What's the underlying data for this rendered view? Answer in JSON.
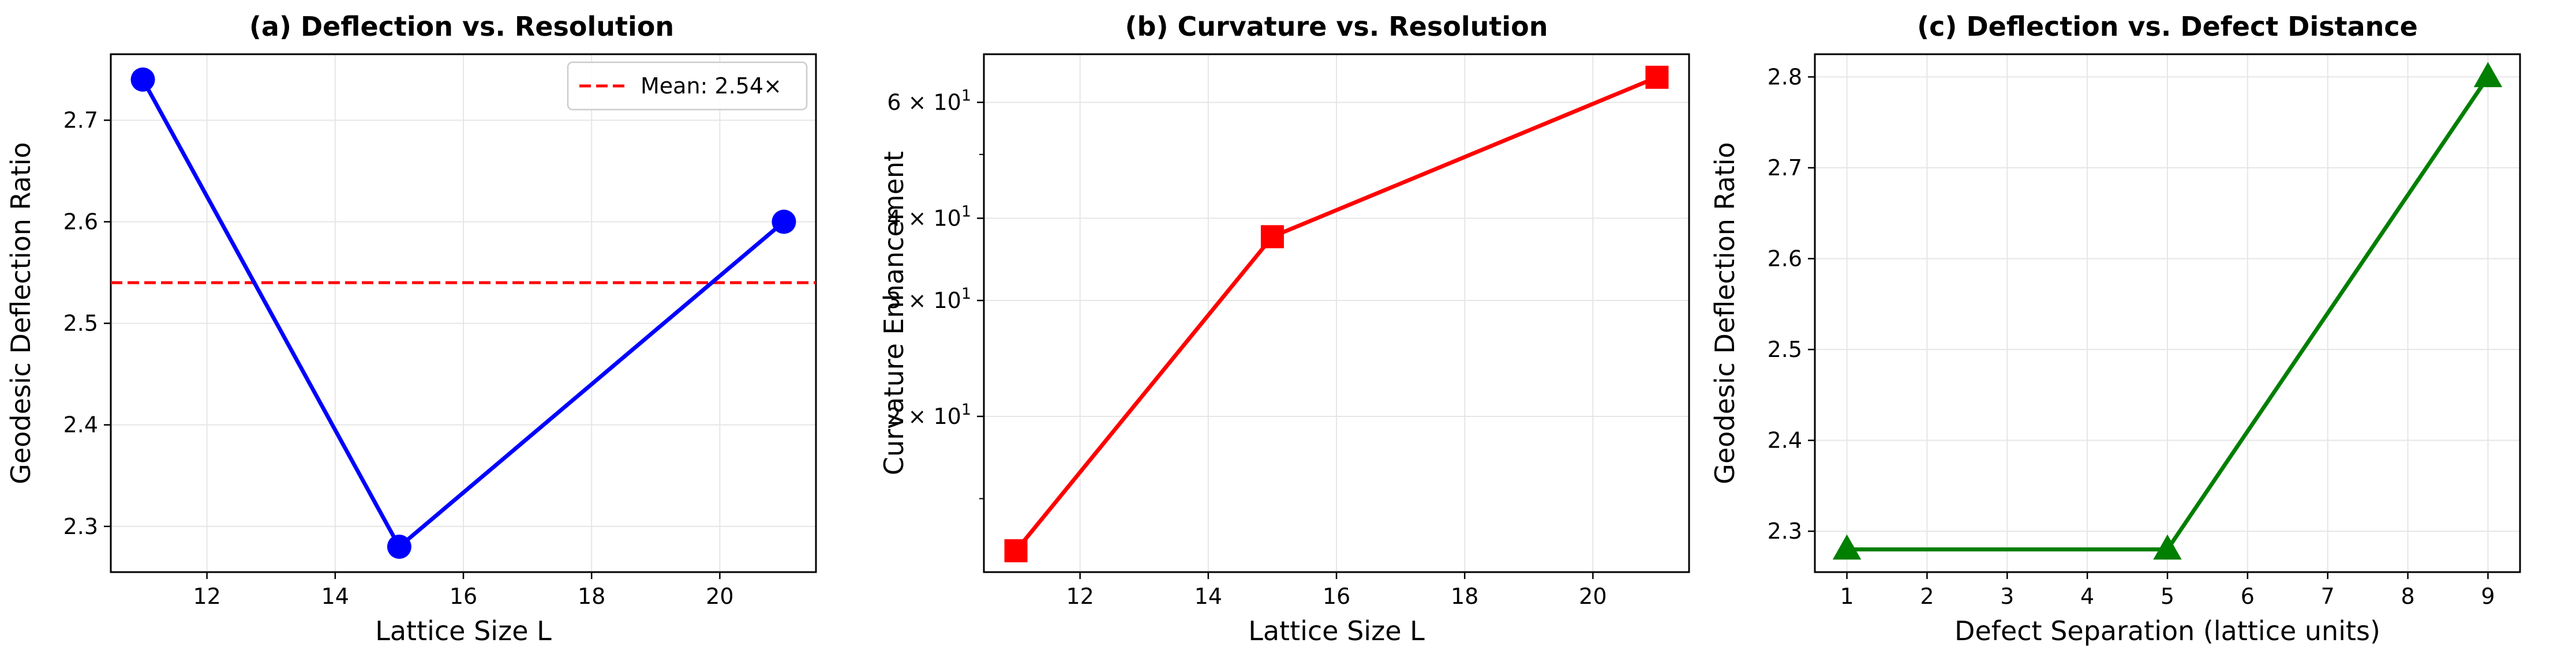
{
  "chart_data": [
    {
      "type": "line",
      "title": "(a) Deflection vs. Resolution",
      "xlabel": "Lattice Size L",
      "ylabel": "Geodesic Deflection Ratio",
      "xlim": [
        10.5,
        21.5
      ],
      "ylim": [
        2.255,
        2.765
      ],
      "yscale": "linear",
      "xticks": [
        12,
        14,
        16,
        18,
        20
      ],
      "xtick_labels": [
        "12",
        "14",
        "16",
        "18",
        "20"
      ],
      "yticks": [
        2.3,
        2.4,
        2.5,
        2.6,
        2.7
      ],
      "ytick_labels": [
        "2.3",
        "2.4",
        "2.5",
        "2.6",
        "2.7"
      ],
      "grid": true,
      "legend": {
        "placement": "top-right",
        "entries": [
          "Mean: 2.54×"
        ]
      },
      "series": [
        {
          "x": [
            11,
            15,
            21
          ],
          "values": [
            2.74,
            2.28,
            2.6
          ],
          "color": "#0000ff",
          "marker": "circle"
        }
      ],
      "hlines": [
        {
          "name": "Mean: 2.54×",
          "value": 2.54,
          "color": "#ff0000",
          "style": "dashed"
        }
      ]
    },
    {
      "type": "line",
      "title": "(b) Curvature vs. Resolution",
      "xlabel": "Lattice Size L",
      "ylabel": "Curvature Enhancement",
      "xlim": [
        10.5,
        21.5
      ],
      "ylim": [
        11.6,
        71
      ],
      "yscale": "log",
      "xticks": [
        12,
        14,
        16,
        18,
        20
      ],
      "xtick_labels": [
        "12",
        "14",
        "16",
        "18",
        "20"
      ],
      "yticks": [
        20,
        30,
        40,
        60
      ],
      "ytick_labels": [
        {
          "mantissa": "2 × 10",
          "exp": "1"
        },
        {
          "mantissa": "3 × 10",
          "exp": "1"
        },
        {
          "mantissa": "4 × 10",
          "exp": "1"
        },
        {
          "mantissa": "6 × 10",
          "exp": "1"
        }
      ],
      "grid": true,
      "series": [
        {
          "x": [
            11,
            15,
            21
          ],
          "values": [
            12.5,
            37.5,
            65.5
          ],
          "color": "#ff0000",
          "marker": "square"
        }
      ]
    },
    {
      "type": "line",
      "title": "(c) Deflection vs. Defect Distance",
      "xlabel": "Defect Separation (lattice units)",
      "ylabel": "Geodesic Deflection Ratio",
      "xlim": [
        0.6,
        9.4
      ],
      "ylim": [
        2.255,
        2.825
      ],
      "yscale": "linear",
      "xticks": [
        1,
        2,
        3,
        4,
        5,
        6,
        7,
        8,
        9
      ],
      "xtick_labels": [
        "1",
        "2",
        "3",
        "4",
        "5",
        "6",
        "7",
        "8",
        "9"
      ],
      "yticks": [
        2.3,
        2.4,
        2.5,
        2.6,
        2.7,
        2.8
      ],
      "ytick_labels": [
        "2.3",
        "2.4",
        "2.5",
        "2.6",
        "2.7",
        "2.8"
      ],
      "grid": true,
      "series": [
        {
          "x": [
            1,
            5,
            9
          ],
          "values": [
            2.28,
            2.28,
            2.8
          ],
          "color": "#007f00",
          "marker": "triangle"
        }
      ]
    }
  ]
}
